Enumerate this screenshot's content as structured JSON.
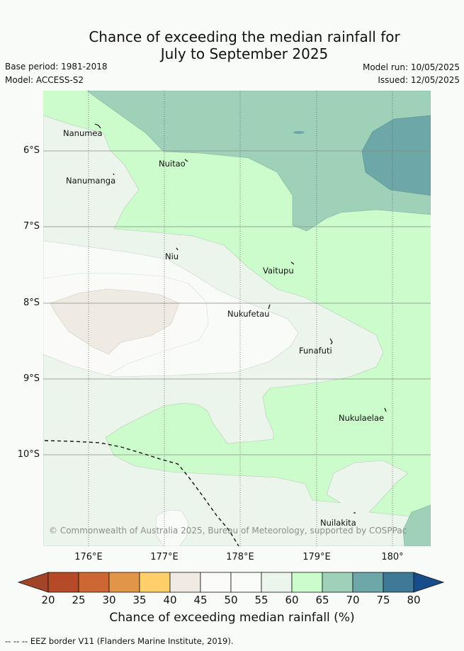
{
  "title_line1": "Chance of exceeding the median rainfall for",
  "title_line2": "July to September 2025",
  "base_period": "Base period: 1981-2018",
  "model": "Model: ACCESS-S2",
  "model_run": "Model run: 10/05/2025",
  "issued": "Issued: 12/05/2025",
  "lat_labels": [
    "6°S",
    "7°S",
    "8°S",
    "9°S",
    "10°S"
  ],
  "lon_labels": [
    "176°E",
    "177°E",
    "178°E",
    "179°E",
    "180°"
  ],
  "places": [
    "Nanumea",
    "Nanumanga",
    "Nuitao",
    "Niu",
    "Vaitupu",
    "Nukufetau",
    "Funafuti",
    "Nukulaelae",
    "Nuilakita"
  ],
  "copyright": "© Commonwealth of Australia 2025, Bureau of Meteorology, supported by COSPPac",
  "colorbar": {
    "ticks": [
      "20",
      "25",
      "30",
      "35",
      "40",
      "45",
      "50",
      "55",
      "60",
      "65",
      "70",
      "75",
      "80"
    ],
    "colors": [
      "#b44a27",
      "#cc6633",
      "#e09548",
      "#ffcf6b",
      "#efebe3",
      "#fafbf9",
      "#f9fbf8",
      "#ebf5eb",
      "#ccfccc",
      "#9fd1b9",
      "#6ea7a7",
      "#3e7997"
    ],
    "under_color": "#a34429",
    "over_color": "#174d8a",
    "label": "Chance of exceeding median rainfall (%)"
  },
  "eez_note": "--  --  -- EEZ border V11 (Flanders Marine Institute, 2019)."
}
